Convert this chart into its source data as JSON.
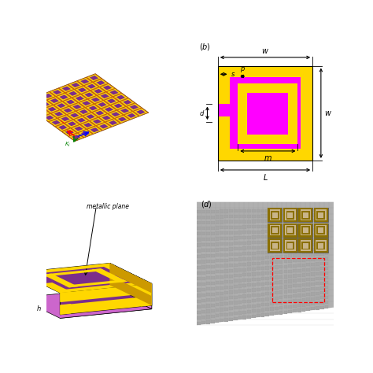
{
  "bg_color": "#ffffff",
  "magenta": "#FF00FF",
  "yellow": "#FFD700",
  "purple": "#7B2D8B",
  "orange_brown": "#CC6600"
}
